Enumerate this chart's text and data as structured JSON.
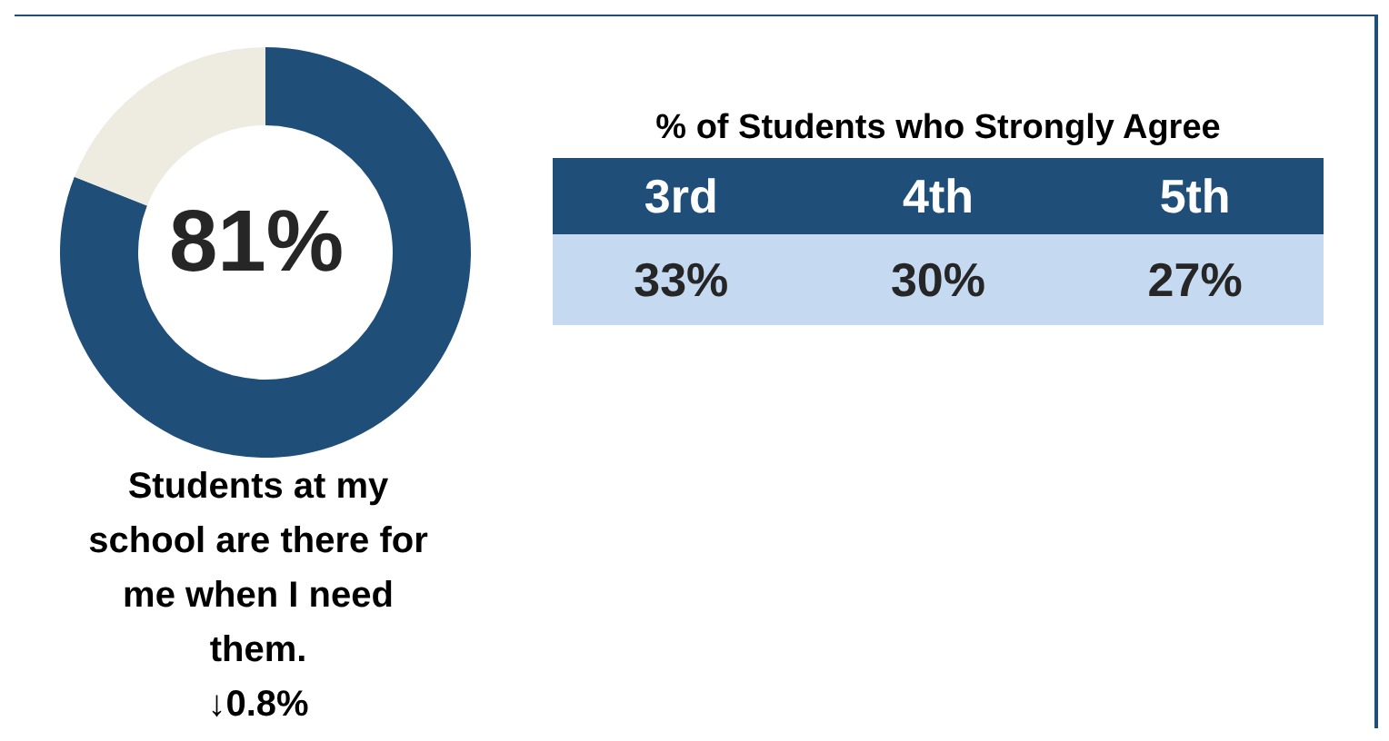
{
  "chart_data": [
    {
      "type": "donut",
      "categories": [
        null,
        null
      ],
      "values": [
        81,
        19
      ],
      "colors": [
        "#1f4e79",
        "#eeece1"
      ],
      "annotations": [
        "81%",
        "Students at my school are there for me when I need them.",
        "↓0.8%"
      ]
    },
    {
      "type": "other",
      "title": "% of Students who Strongly Agree",
      "categories": [
        "3rd",
        "4th",
        "5th"
      ],
      "value_labels": [
        "33%",
        "30%",
        "27%"
      ],
      "colors": [
        "#1f4e79",
        "#c5d9f1"
      ]
    }
  ]
}
